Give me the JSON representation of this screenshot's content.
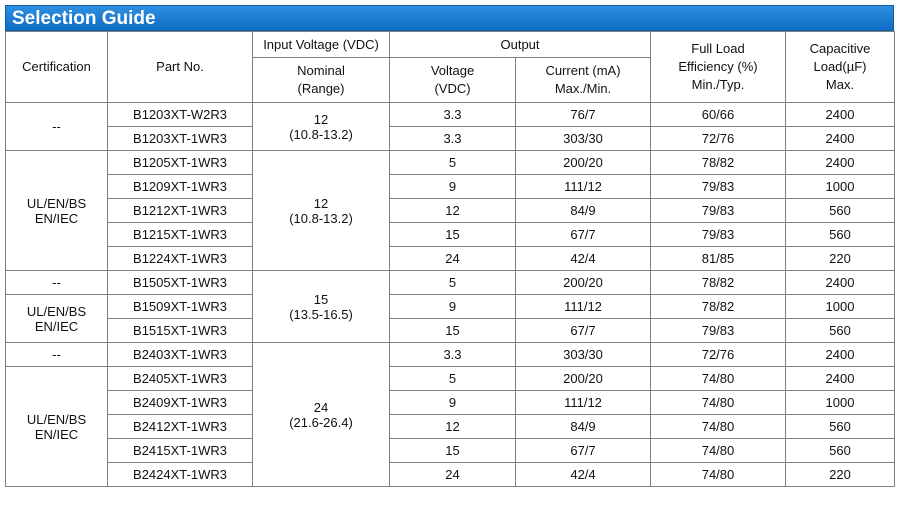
{
  "title": "Selection Guide",
  "headers": {
    "certification": "Certification",
    "part_no": "Part No.",
    "input_voltage": "Input Voltage (VDC)",
    "nominal_line1": "Nominal",
    "nominal_line2": "(Range)",
    "output": "Output",
    "voltage_line1": "Voltage",
    "voltage_line2": "(VDC)",
    "current_line1": "Current (mA)",
    "current_line2": "Max./Min.",
    "eff_line1": "Full Load",
    "eff_line2": "Efficiency (%)",
    "eff_line3": "Min./Typ.",
    "cap_line1": "Capacitive",
    "cap_line2": "Load(µF)",
    "cap_line3": "Max."
  },
  "cert_groups": [
    {
      "line1": "--",
      "line2": ""
    },
    {
      "line1": "UL/EN/BS",
      "line2": "EN/IEC"
    },
    {
      "line1": "--",
      "line2": ""
    },
    {
      "line1": "UL/EN/BS",
      "line2": "EN/IEC"
    },
    {
      "line1": "--",
      "line2": ""
    },
    {
      "line1": "UL/EN/BS",
      "line2": "EN/IEC"
    }
  ],
  "input_groups": [
    {
      "nominal": "12",
      "range": "(10.8-13.2)"
    },
    {
      "nominal": "12",
      "range": "(10.8-13.2)"
    },
    {
      "nominal": "15",
      "range": "(13.5-16.5)"
    },
    {
      "nominal": "24",
      "range": "(21.6-26.4)"
    }
  ],
  "rows": [
    {
      "part": "B1203XT-W2R3",
      "voltage": "3.3",
      "current": "76/7",
      "efficiency": "60/66",
      "cap": "2400"
    },
    {
      "part": "B1203XT-1WR3",
      "voltage": "3.3",
      "current": "303/30",
      "efficiency": "72/76",
      "cap": "2400"
    },
    {
      "part": "B1205XT-1WR3",
      "voltage": "5",
      "current": "200/20",
      "efficiency": "78/82",
      "cap": "2400"
    },
    {
      "part": "B1209XT-1WR3",
      "voltage": "9",
      "current": "111/12",
      "efficiency": "79/83",
      "cap": "1000"
    },
    {
      "part": "B1212XT-1WR3",
      "voltage": "12",
      "current": "84/9",
      "efficiency": "79/83",
      "cap": "560"
    },
    {
      "part": "B1215XT-1WR3",
      "voltage": "15",
      "current": "67/7",
      "efficiency": "79/83",
      "cap": "560"
    },
    {
      "part": "B1224XT-1WR3",
      "voltage": "24",
      "current": "42/4",
      "efficiency": "81/85",
      "cap": "220"
    },
    {
      "part": "B1505XT-1WR3",
      "voltage": "5",
      "current": "200/20",
      "efficiency": "78/82",
      "cap": "2400"
    },
    {
      "part": "B1509XT-1WR3",
      "voltage": "9",
      "current": "111/12",
      "efficiency": "78/82",
      "cap": "1000"
    },
    {
      "part": "B1515XT-1WR3",
      "voltage": "15",
      "current": "67/7",
      "efficiency": "79/83",
      "cap": "560"
    },
    {
      "part": "B2403XT-1WR3",
      "voltage": "3.3",
      "current": "303/30",
      "efficiency": "72/76",
      "cap": "2400"
    },
    {
      "part": "B2405XT-1WR3",
      "voltage": "5",
      "current": "200/20",
      "efficiency": "74/80",
      "cap": "2400"
    },
    {
      "part": "B2409XT-1WR3",
      "voltage": "9",
      "current": "111/12",
      "efficiency": "74/80",
      "cap": "1000"
    },
    {
      "part": "B2412XT-1WR3",
      "voltage": "12",
      "current": "84/9",
      "efficiency": "74/80",
      "cap": "560"
    },
    {
      "part": "B2415XT-1WR3",
      "voltage": "15",
      "current": "67/7",
      "efficiency": "74/80",
      "cap": "560"
    },
    {
      "part": "B2424XT-1WR3",
      "voltage": "24",
      "current": "42/4",
      "efficiency": "74/80",
      "cap": "220"
    }
  ]
}
